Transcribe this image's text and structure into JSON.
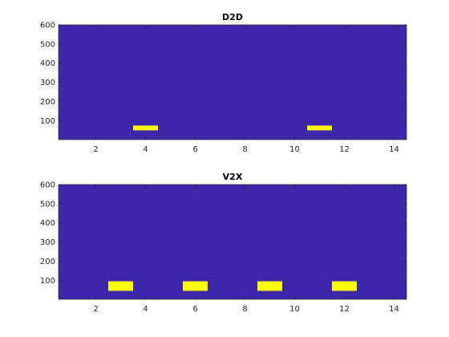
{
  "chart_data": [
    {
      "type": "heatmap",
      "title": "D2D",
      "xlabel": "",
      "ylabel": "",
      "xlim": [
        0.5,
        14.5
      ],
      "ylim": [
        1,
        600
      ],
      "xticks": [
        2,
        4,
        6,
        8,
        10,
        12,
        14
      ],
      "yticks": [
        100,
        200,
        300,
        400,
        500,
        600
      ],
      "background_color": "#3d26a8",
      "mark_color": "#f9fb0e",
      "grid": false,
      "segments": [
        {
          "x_start": 3.5,
          "x_end": 4.5,
          "y_center": 62,
          "thickness": 6
        },
        {
          "x_start": 10.5,
          "x_end": 11.5,
          "y_center": 62,
          "thickness": 6
        }
      ]
    },
    {
      "type": "heatmap",
      "title": "V2X",
      "xlabel": "",
      "ylabel": "",
      "xlim": [
        0.5,
        14.5
      ],
      "ylim": [
        1,
        600
      ],
      "xticks": [
        2,
        4,
        6,
        8,
        10,
        12,
        14
      ],
      "yticks": [
        100,
        200,
        300,
        400,
        500,
        600
      ],
      "background_color": "#3d26a8",
      "mark_color": "#f9fb0e",
      "grid": false,
      "segments": [
        {
          "x_start": 2.5,
          "x_end": 3.5,
          "y_center": 70,
          "thickness": 12
        },
        {
          "x_start": 5.5,
          "x_end": 6.5,
          "y_center": 70,
          "thickness": 12
        },
        {
          "x_start": 8.5,
          "x_end": 9.5,
          "y_center": 70,
          "thickness": 12
        },
        {
          "x_start": 11.5,
          "x_end": 12.5,
          "y_center": 70,
          "thickness": 12
        }
      ]
    }
  ]
}
